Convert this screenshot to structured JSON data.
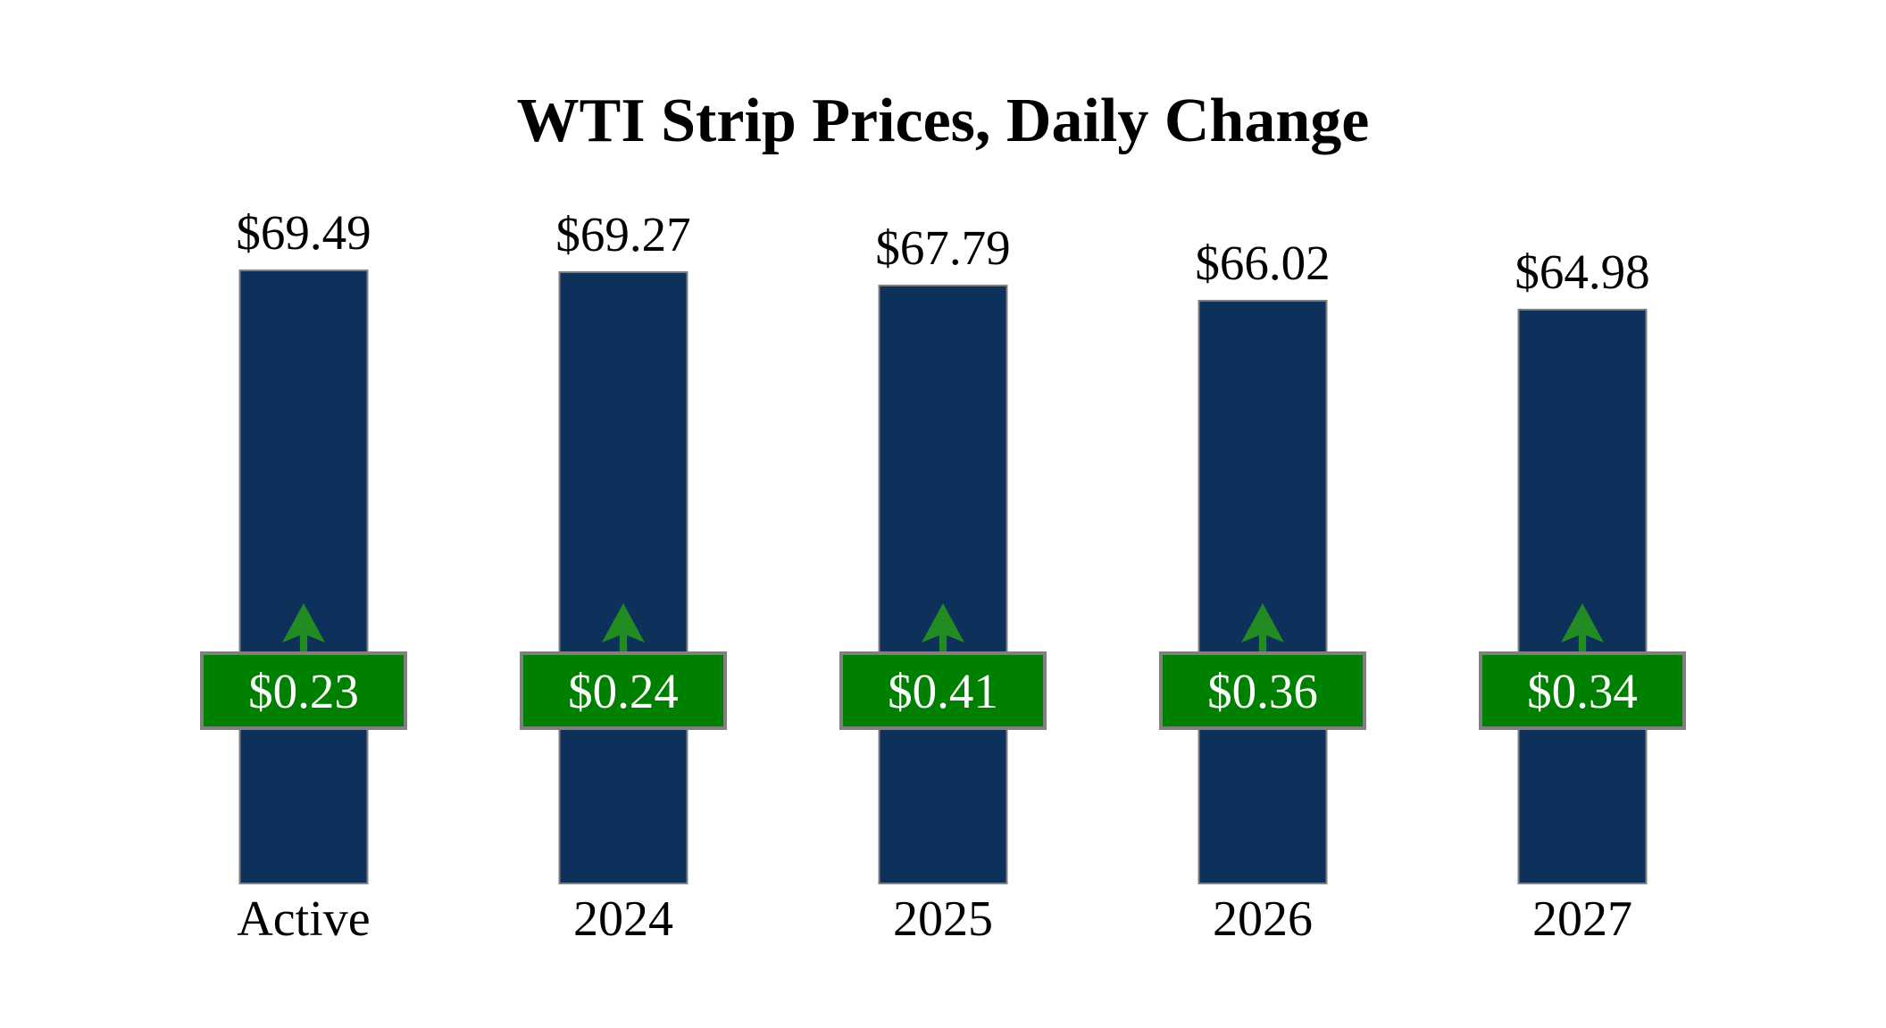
{
  "chart_data": {
    "type": "bar",
    "title": "WTI Strip Prices, Daily Change",
    "categories": [
      "Active",
      "2024",
      "2025",
      "2026",
      "2027"
    ],
    "series": [
      {
        "name": "Strip Price",
        "values": [
          69.49,
          69.27,
          67.79,
          66.02,
          64.98
        ],
        "labels": [
          "$69.49",
          "$69.27",
          "$67.79",
          "$66.02",
          "$64.98"
        ]
      },
      {
        "name": "Daily Change",
        "values": [
          0.23,
          0.24,
          0.41,
          0.36,
          0.34
        ],
        "labels": [
          "$0.23",
          "$0.24",
          "$0.41",
          "$0.36",
          "$0.34"
        ],
        "direction": "up"
      }
    ],
    "ylim": [
      0,
      70
    ],
    "grid": false,
    "legend": false,
    "xlabel": "",
    "ylabel": "",
    "value_label_position": "above-bar",
    "change_badge_position": "fixed-row-overlay"
  },
  "colors": {
    "background": "#FFFFFF",
    "bar_fill": "#0E315C",
    "bar_border": "#808080",
    "badge_fill": "#008000",
    "badge_border": "#808080",
    "badge_text": "#FFFFFF",
    "arrow": "#228B22",
    "text": "#000000"
  },
  "icons": {
    "up_arrow": "up-arrow-icon"
  }
}
